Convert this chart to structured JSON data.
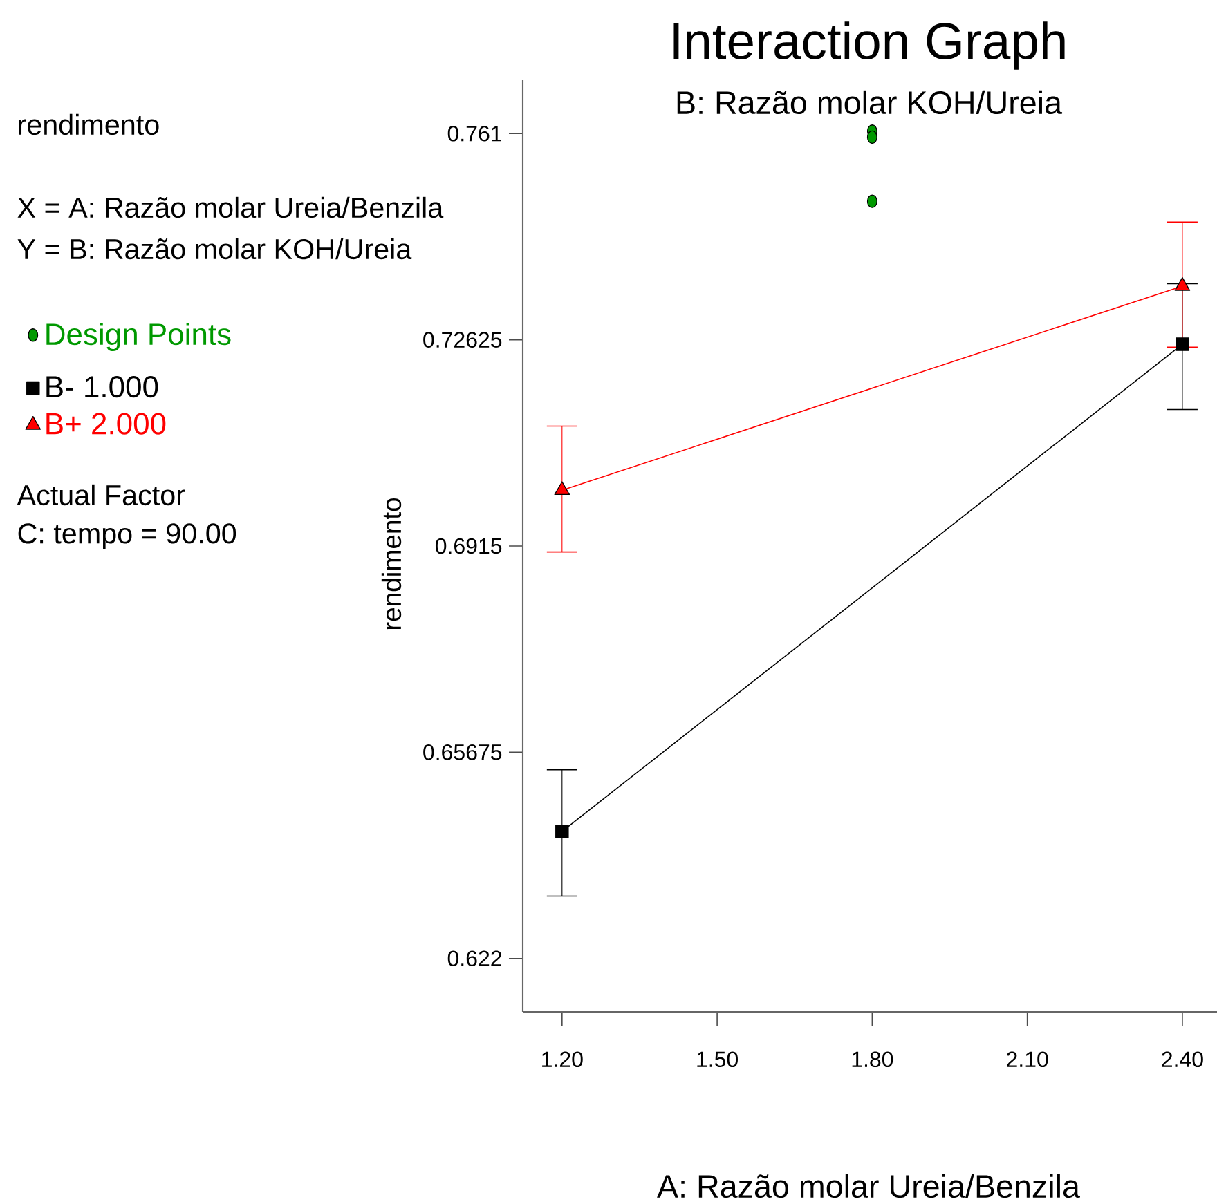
{
  "chart_data": {
    "type": "line",
    "title": "Interaction Graph",
    "subtitle": "B: Razão molar KOH/Ureia",
    "xlabel": "A: Razão molar Ureia/Benzila",
    "ylabel": "rendimento",
    "annotations": [
      "rendimento",
      "X = A: Razão molar Ureia/Benzila",
      "Y = B: Razão molar KOH/Ureia",
      "Actual Factor",
      "C: tempo = 90.00"
    ],
    "xlim": [
      1.124,
      2.467
    ],
    "ylim": [
      0.613,
      0.77
    ],
    "xticks": [
      {
        "value": 1.2,
        "label": "1.20"
      },
      {
        "value": 1.5,
        "label": "1.50"
      },
      {
        "value": 1.8,
        "label": "1.80"
      },
      {
        "value": 2.1,
        "label": "2.10"
      },
      {
        "value": 2.4,
        "label": "2.40"
      }
    ],
    "yticks": [
      0.622,
      0.65675,
      0.6915,
      0.72625,
      0.761
    ],
    "legend": "left",
    "series": [
      {
        "name": "Design Points",
        "type": "scatter",
        "marker": "circle",
        "color": "#009900",
        "x": [
          1.8,
          1.8,
          1.8
        ],
        "values": [
          0.7614,
          0.7604,
          0.7496
        ]
      },
      {
        "name": "B- 1.000",
        "marker": "square",
        "color": "#000000",
        "x": [
          1.2,
          2.4
        ],
        "values": [
          0.6434,
          0.7255
        ],
        "errors": [
          [
            0.6325,
            0.6538
          ],
          [
            0.7145,
            0.7357
          ]
        ]
      },
      {
        "name": "B+ 2.000",
        "marker": "triangle",
        "color": "#ff0000",
        "x": [
          1.2,
          2.4
        ],
        "values": [
          0.7009,
          0.7353
        ],
        "errors": [
          [
            0.6905,
            0.7117
          ],
          [
            0.725,
            0.7461
          ]
        ]
      }
    ]
  }
}
